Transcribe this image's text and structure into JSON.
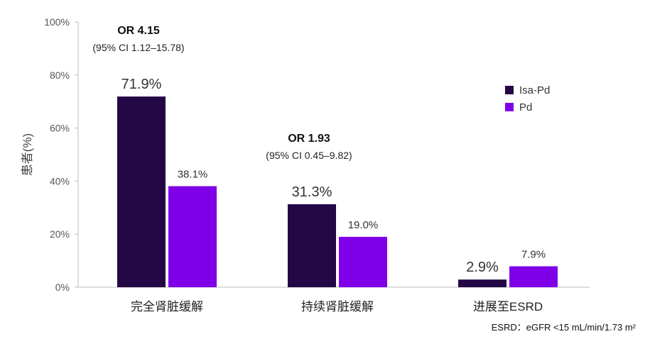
{
  "chart_data": {
    "type": "bar",
    "ylabel": "患者(%)",
    "ylim": [
      0,
      100
    ],
    "yticks": [
      "0%",
      "20%",
      "40%",
      "60%",
      "80%",
      "100%"
    ],
    "categories": [
      "完全肾脏缓解",
      "持续肾脏缓解",
      "进展至ESRD"
    ],
    "series": [
      {
        "name": "Isa-Pd",
        "color": "#230845",
        "values": [
          71.9,
          31.3,
          2.9
        ],
        "labels": [
          "71.9%",
          "31.3%",
          "2.9%"
        ]
      },
      {
        "name": "Pd",
        "color": "#7F00E8",
        "values": [
          38.1,
          19.0,
          7.9
        ],
        "labels": [
          "38.1%",
          "19.0%",
          "7.9%"
        ]
      }
    ],
    "annotations": [
      {
        "category_index": 0,
        "title": "OR 4.15",
        "ci": "(95% CI 1.12–15.78)"
      },
      {
        "category_index": 1,
        "title": "OR 1.93",
        "ci": "(95% CI 0.45–9.82)"
      }
    ],
    "legend_position": "right",
    "footnote": "ESRD：eGFR <15 mL/min/1.73 m²"
  }
}
